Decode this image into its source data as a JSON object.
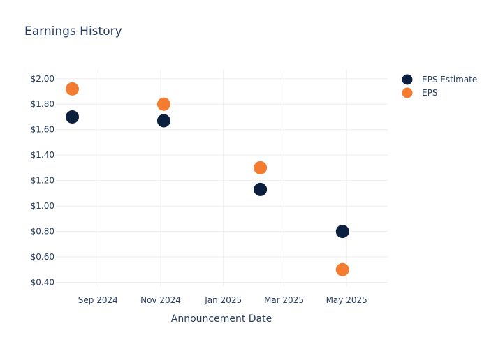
{
  "chart_data": {
    "type": "scatter",
    "title": "Earnings History",
    "xlabel": "Announcement Date",
    "ylabel": "",
    "x_axis_type": "date",
    "xlim": [
      "2024-07-22",
      "2025-06-10"
    ],
    "ylim": [
      0.37,
      2.07
    ],
    "x_ticks": [
      {
        "date": "2024-09-01",
        "label": "Sep 2024"
      },
      {
        "date": "2024-11-01",
        "label": "Nov 2024"
      },
      {
        "date": "2025-01-01",
        "label": "Jan 2025"
      },
      {
        "date": "2025-03-01",
        "label": "Mar 2025"
      },
      {
        "date": "2025-05-01",
        "label": "May 2025"
      }
    ],
    "y_ticks": [
      {
        "value": 0.4,
        "label": "$0.40"
      },
      {
        "value": 0.6,
        "label": "$0.60"
      },
      {
        "value": 0.8,
        "label": "$0.80"
      },
      {
        "value": 1.0,
        "label": "$1.00"
      },
      {
        "value": 1.2,
        "label": "$1.20"
      },
      {
        "value": 1.4,
        "label": "$1.40"
      },
      {
        "value": 1.6,
        "label": "$1.60"
      },
      {
        "value": 1.8,
        "label": "$1.80"
      },
      {
        "value": 2.0,
        "label": "$2.00"
      }
    ],
    "grid": true,
    "legend_position": "top-right",
    "series": [
      {
        "name": "EPS Estimate",
        "color": "#0b1f3f",
        "points": [
          {
            "x": "2024-08-07",
            "y": 1.7
          },
          {
            "x": "2024-11-04",
            "y": 1.67
          },
          {
            "x": "2025-02-06",
            "y": 1.13
          },
          {
            "x": "2025-04-27",
            "y": 0.8
          }
        ]
      },
      {
        "name": "EPS",
        "color": "#f47c30",
        "points": [
          {
            "x": "2024-08-07",
            "y": 1.92
          },
          {
            "x": "2024-11-04",
            "y": 1.8
          },
          {
            "x": "2025-02-06",
            "y": 1.3
          },
          {
            "x": "2025-04-27",
            "y": 0.5
          }
        ]
      }
    ]
  }
}
